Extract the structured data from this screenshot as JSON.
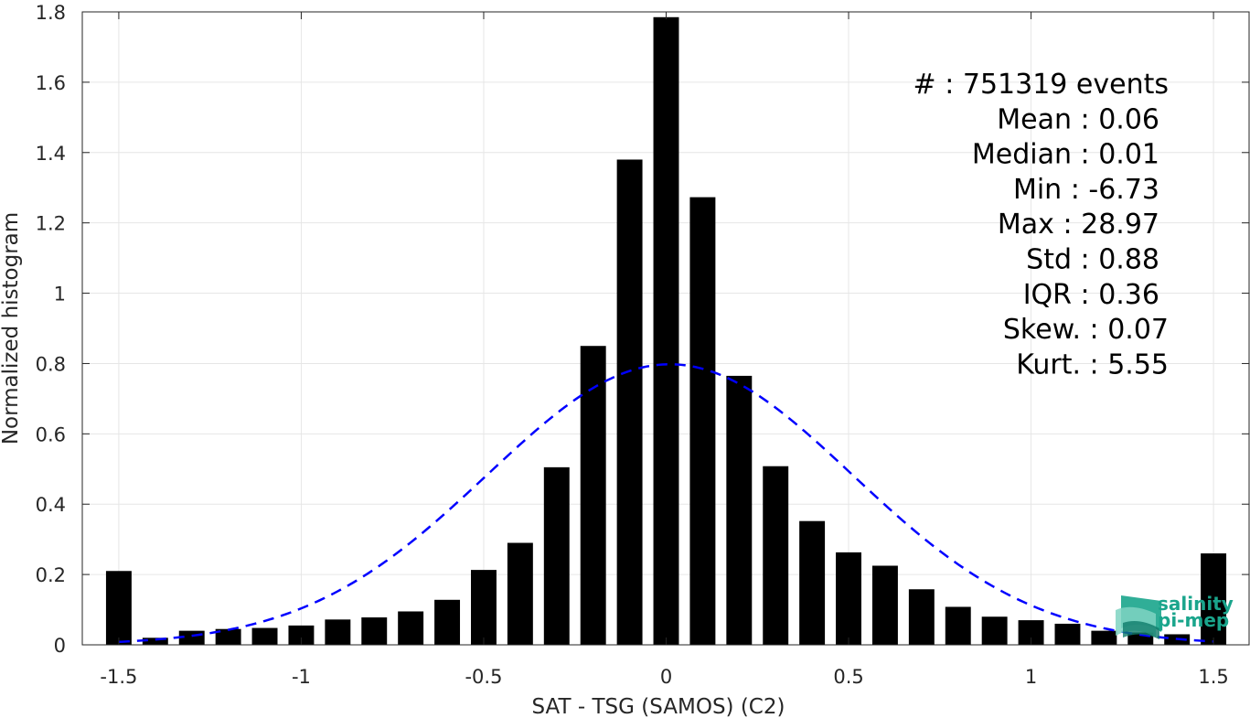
{
  "chart_data": {
    "type": "bar",
    "xlabel": "SAT - TSG (SAMOS) (C2)",
    "ylabel": "Normalized histogram",
    "xlim": [
      -1.6,
      1.6
    ],
    "ylim": [
      0,
      1.8
    ],
    "xticks": [
      -1.5,
      -1,
      -0.5,
      0,
      0.5,
      1,
      1.5
    ],
    "xtick_labels": [
      "-1.5",
      "-1",
      "-0.5",
      "0",
      "0.5",
      "1",
      "1.5"
    ],
    "yticks": [
      0,
      0.2,
      0.4,
      0.6,
      0.8,
      1,
      1.2,
      1.4,
      1.6,
      1.8
    ],
    "ytick_labels": [
      "0",
      "0.2",
      "0.4",
      "0.6",
      "0.8",
      "1",
      "1.2",
      "1.4",
      "1.6",
      "1.8"
    ],
    "grid": true,
    "bar_width": 0.07,
    "bars": {
      "x": [
        -1.5,
        -1.4,
        -1.3,
        -1.2,
        -1.1,
        -1.0,
        -0.9,
        -0.8,
        -0.7,
        -0.6,
        -0.5,
        -0.4,
        -0.3,
        -0.2,
        -0.1,
        0.0,
        0.1,
        0.2,
        0.3,
        0.4,
        0.5,
        0.6,
        0.7,
        0.8,
        0.9,
        1.0,
        1.1,
        1.2,
        1.3,
        1.4,
        1.5
      ],
      "values": [
        0.21,
        0.02,
        0.04,
        0.045,
        0.048,
        0.055,
        0.072,
        0.078,
        0.095,
        0.128,
        0.213,
        0.29,
        0.505,
        0.85,
        1.38,
        1.785,
        1.273,
        0.765,
        0.508,
        0.352,
        0.263,
        0.225,
        0.158,
        0.108,
        0.08,
        0.07,
        0.06,
        0.04,
        0.035,
        0.03,
        0.26
      ],
      "color": "#000000"
    },
    "fit_curve": {
      "style": "dashed",
      "color": "#0000ff",
      "mean": 0.01,
      "std": 0.5
    },
    "stats": [
      {
        "label": "#  : 751319 events"
      },
      {
        "label": "Mean : 0.06"
      },
      {
        "label": "Median : 0.01"
      },
      {
        "label": "Min : -6.73"
      },
      {
        "label": "Max : 28.97"
      },
      {
        "label": "Std : 0.88"
      },
      {
        "label": "IQR : 0.36"
      },
      {
        "label": "Skew. : 0.07"
      },
      {
        "label": "Kurt. : 5.55"
      }
    ]
  },
  "logo": {
    "line1": "salinity",
    "line2": "pi-mep",
    "color": "#1aa58c"
  }
}
